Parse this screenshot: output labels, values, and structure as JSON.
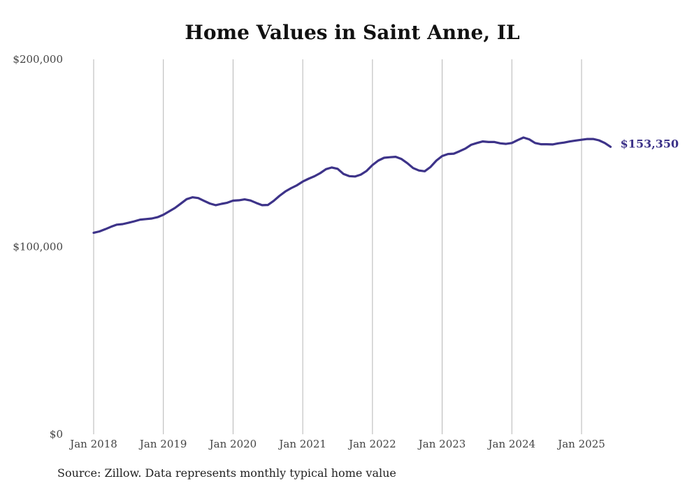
{
  "chart_data": {
    "type": "line",
    "title": "Home Values in Saint Anne, IL",
    "xlabel": "",
    "ylabel": "",
    "ylim": [
      0,
      200000
    ],
    "yticks": [
      {
        "value": 0,
        "label": "$0"
      },
      {
        "value": 100000,
        "label": "$100,000"
      },
      {
        "value": 200000,
        "label": "$200,000"
      }
    ],
    "xticks": [
      {
        "value": "2018-01",
        "label": "Jan 2018"
      },
      {
        "value": "2019-01",
        "label": "Jan 2019"
      },
      {
        "value": "2020-01",
        "label": "Jan 2020"
      },
      {
        "value": "2021-01",
        "label": "Jan 2021"
      },
      {
        "value": "2022-01",
        "label": "Jan 2022"
      },
      {
        "value": "2023-01",
        "label": "Jan 2023"
      },
      {
        "value": "2024-01",
        "label": "Jan 2024"
      },
      {
        "value": "2025-01",
        "label": "Jan 2025"
      }
    ],
    "grid": "vertical",
    "end_label": "$153,350",
    "series": [
      {
        "color": "#3d3389",
        "x": [
          "2018-01",
          "2018-02",
          "2018-03",
          "2018-04",
          "2018-05",
          "2018-06",
          "2018-07",
          "2018-08",
          "2018-09",
          "2018-10",
          "2018-11",
          "2018-12",
          "2019-01",
          "2019-02",
          "2019-03",
          "2019-04",
          "2019-05",
          "2019-06",
          "2019-07",
          "2019-08",
          "2019-09",
          "2019-10",
          "2019-11",
          "2019-12",
          "2020-01",
          "2020-02",
          "2020-03",
          "2020-04",
          "2020-05",
          "2020-06",
          "2020-07",
          "2020-08",
          "2020-09",
          "2020-10",
          "2020-11",
          "2020-12",
          "2021-01",
          "2021-02",
          "2021-03",
          "2021-04",
          "2021-05",
          "2021-06",
          "2021-07",
          "2021-08",
          "2021-09",
          "2021-10",
          "2021-11",
          "2021-12",
          "2022-01",
          "2022-02",
          "2022-03",
          "2022-04",
          "2022-05",
          "2022-06",
          "2022-07",
          "2022-08",
          "2022-09",
          "2022-10",
          "2022-11",
          "2022-12",
          "2023-01",
          "2023-02",
          "2023-03",
          "2023-04",
          "2023-05",
          "2023-06",
          "2023-07",
          "2023-08",
          "2023-09",
          "2023-10",
          "2023-11",
          "2023-12",
          "2024-01",
          "2024-02",
          "2024-03",
          "2024-04",
          "2024-05",
          "2024-06",
          "2024-07",
          "2024-08",
          "2024-09",
          "2024-10",
          "2024-11",
          "2024-12",
          "2025-01",
          "2025-02",
          "2025-03",
          "2025-04",
          "2025-05",
          "2025-06"
        ],
        "values": [
          107500,
          108200,
          109400,
          110700,
          111800,
          112100,
          112800,
          113600,
          114500,
          114800,
          115100,
          115800,
          117100,
          118900,
          120700,
          123000,
          125400,
          126400,
          126000,
          124500,
          123100,
          122200,
          122900,
          123500,
          124600,
          124800,
          125300,
          124700,
          123400,
          122200,
          122300,
          124500,
          127200,
          129500,
          131300,
          132800,
          134800,
          136300,
          137600,
          139300,
          141400,
          142300,
          141600,
          138900,
          137700,
          137500,
          138500,
          140500,
          143600,
          146000,
          147500,
          147800,
          148000,
          146800,
          144600,
          142000,
          140700,
          140300,
          142600,
          146000,
          148400,
          149500,
          149700,
          151000,
          152400,
          154400,
          155400,
          156200,
          155900,
          155900,
          155200,
          154900,
          155400,
          156900,
          158300,
          157300,
          155400,
          154700,
          154700,
          154600,
          155200,
          155600,
          156200,
          156700,
          157100,
          157500,
          157500,
          156800,
          155400,
          153350
        ]
      }
    ]
  },
  "source_text": "Source: Zillow. Data represents monthly typical home value"
}
